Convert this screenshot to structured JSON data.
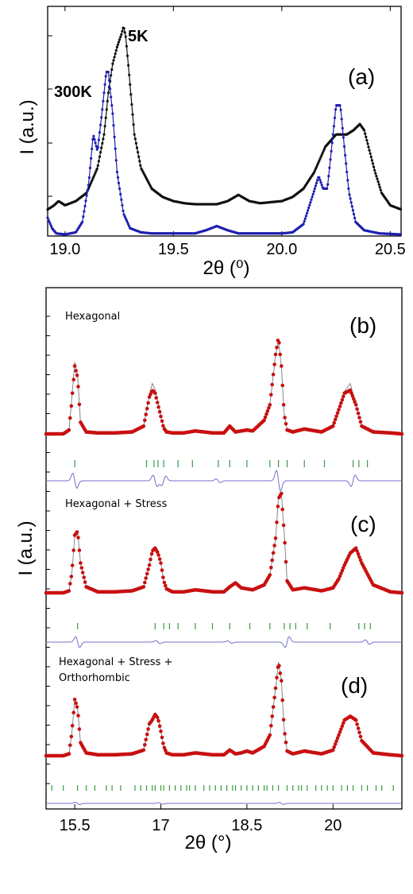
{
  "chart_data": [
    {
      "type": "line",
      "panel_label": "(a)",
      "xlabel": "2θ (⁰)",
      "ylabel": "I (a.u.)",
      "xlim": [
        18.92,
        20.55
      ],
      "ylim": [
        0,
        100
      ],
      "x_ticks": [
        19.0,
        19.5,
        20.0,
        20.5
      ],
      "x_tick_labels": [
        "19.0",
        "19.5",
        "20.0",
        "20.5"
      ],
      "y_tick_labels_shown": false,
      "annotations": [
        "300K",
        "5K"
      ],
      "series_colors": {
        "black": "#111111",
        "blue": "#1f1fb0"
      },
      "series": [
        {
          "color": "black",
          "x": [
            18.92,
            18.95,
            18.97,
            19.0,
            19.05,
            19.1,
            19.15,
            19.18,
            19.2,
            19.22,
            19.24,
            19.26,
            19.27,
            19.28,
            19.3,
            19.32,
            19.35,
            19.4,
            19.45,
            19.5,
            19.55,
            19.6,
            19.7,
            19.75,
            19.8,
            19.85,
            19.9,
            20.0,
            20.05,
            20.1,
            20.15,
            20.2,
            20.25,
            20.3,
            20.33,
            20.36,
            20.38,
            20.4,
            20.43,
            20.46,
            20.5,
            20.55
          ],
          "y": [
            12,
            14,
            16,
            14,
            16,
            20,
            32,
            48,
            68,
            82,
            90,
            96,
            100,
            95,
            72,
            48,
            32,
            22,
            18,
            16,
            15,
            14.5,
            14.5,
            16,
            19,
            16,
            15,
            16,
            18,
            22,
            30,
            42,
            48,
            48,
            50,
            53,
            50,
            42,
            30,
            20,
            14,
            12
          ]
        },
        {
          "color": "blue",
          "x": [
            18.92,
            18.94,
            18.96,
            19.0,
            19.05,
            19.08,
            19.11,
            19.13,
            19.15,
            19.17,
            19.19,
            19.2,
            19.22,
            19.24,
            19.27,
            19.3,
            19.35,
            19.4,
            19.5,
            19.6,
            19.65,
            19.7,
            19.75,
            19.8,
            19.9,
            20.0,
            20.05,
            20.1,
            20.14,
            20.17,
            20.19,
            20.21,
            20.23,
            20.25,
            20.27,
            20.29,
            20.31,
            20.34,
            20.38,
            20.45,
            20.55
          ],
          "y": [
            8,
            3,
            0.5,
            0,
            1,
            6,
            25,
            48,
            40,
            58,
            78,
            78,
            58,
            30,
            10,
            3,
            1,
            0.5,
            0.5,
            0.5,
            2,
            4,
            2,
            0.5,
            0.5,
            0.5,
            1,
            5,
            18,
            28,
            22,
            22,
            42,
            62,
            62,
            40,
            20,
            6,
            2,
            0.5,
            0
          ]
        }
      ]
    },
    {
      "type": "line",
      "panel_labels": [
        "(b)",
        "(c)",
        "(d)"
      ],
      "fit_labels": [
        "Hexagonal",
        "Hexagonal + Stress",
        "Hexagonal + Stress +",
        "Orthorhombic"
      ],
      "xlabel": "2θ (°)",
      "ylabel": "I (a.u.)",
      "xlim": [
        15.0,
        21.2
      ],
      "x_ticks": [
        15.5,
        17,
        18.5,
        20
      ],
      "x_tick_labels": [
        "15.5",
        "17",
        "18.5",
        "20"
      ],
      "y_tick_labels_shown": false,
      "colors": {
        "observed": "#c81010",
        "calculated": "#888888",
        "difference": "#7070cc",
        "reflections": "#3a9a3a"
      },
      "profile_x": [
        15.0,
        15.3,
        15.4,
        15.45,
        15.5,
        15.55,
        15.6,
        15.7,
        15.9,
        16.2,
        16.5,
        16.7,
        16.8,
        16.85,
        16.9,
        16.95,
        17.0,
        17.05,
        17.1,
        17.2,
        17.4,
        17.6,
        17.9,
        18.1,
        18.2,
        18.3,
        18.4,
        18.5,
        18.6,
        18.8,
        18.9,
        19.0,
        19.05,
        19.1,
        19.15,
        19.2,
        19.3,
        19.5,
        19.8,
        20.0,
        20.1,
        20.2,
        20.3,
        20.4,
        20.5,
        20.7,
        21.0,
        21.2
      ],
      "profiles": [
        {
          "panel": "(b)",
          "observed": [
            0,
            0,
            4,
            35,
            70,
            58,
            12,
            2,
            1,
            1,
            2,
            8,
            38,
            45,
            42,
            30,
            18,
            6,
            2,
            1,
            1,
            3,
            1,
            1,
            8,
            2,
            3,
            4,
            3,
            14,
            30,
            82,
            100,
            70,
            20,
            4,
            2,
            5,
            2,
            8,
            25,
            42,
            45,
            30,
            8,
            2,
            1,
            0
          ],
          "calculated": [
            0,
            0,
            4,
            38,
            74,
            60,
            12,
            2,
            1,
            1,
            2,
            8,
            40,
            52,
            46,
            32,
            18,
            6,
            2,
            1,
            1,
            3,
            1,
            1,
            8,
            2,
            3,
            4,
            3,
            14,
            30,
            82,
            96,
            70,
            20,
            4,
            2,
            5,
            2,
            8,
            25,
            44,
            52,
            30,
            8,
            2,
            1,
            0
          ],
          "difference": [
            0,
            0,
            0,
            0,
            0,
            0,
            0,
            0,
            0,
            0,
            0,
            0,
            0,
            0,
            0,
            0,
            0,
            0,
            0,
            0,
            0,
            0,
            0,
            0,
            0,
            0,
            0,
            0,
            0,
            0,
            0,
            0,
            0,
            0,
            0,
            0,
            0,
            0,
            0,
            0,
            0,
            0,
            0,
            0,
            0,
            0,
            0,
            0
          ],
          "difference_features": [
            {
              "x": 15.5,
              "amp": -40
            },
            {
              "x": 16.9,
              "amp": -30
            },
            {
              "x": 17.05,
              "amp": 25
            },
            {
              "x": 18.0,
              "amp": -10
            },
            {
              "x": 19.05,
              "amp": -55
            },
            {
              "x": 20.35,
              "amp": 30
            }
          ],
          "reflections_x": [
            15.5,
            16.75,
            16.88,
            16.95,
            17.05,
            17.3,
            17.55,
            18.0,
            18.2,
            18.5,
            18.9,
            19.05,
            19.2,
            19.5,
            19.85,
            20.35,
            20.45,
            20.6
          ]
        },
        {
          "panel": "(c)",
          "observed": [
            0,
            0,
            2,
            20,
            58,
            62,
            30,
            6,
            1,
            1,
            2,
            6,
            28,
            42,
            45,
            40,
            30,
            12,
            4,
            1,
            1,
            3,
            1,
            1,
            6,
            10,
            5,
            4,
            3,
            8,
            18,
            55,
            95,
            100,
            60,
            12,
            3,
            5,
            2,
            5,
            14,
            28,
            40,
            45,
            30,
            8,
            1,
            0
          ],
          "calculated": [
            0,
            0,
            2,
            20,
            58,
            62,
            30,
            6,
            1,
            1,
            2,
            6,
            28,
            42,
            45,
            40,
            30,
            12,
            4,
            1,
            1,
            3,
            1,
            1,
            6,
            10,
            5,
            4,
            3,
            8,
            18,
            55,
            95,
            100,
            60,
            12,
            3,
            5,
            2,
            5,
            14,
            28,
            40,
            45,
            30,
            8,
            1,
            0
          ],
          "difference": [
            0,
            0,
            0,
            0,
            0,
            0,
            0,
            0,
            0,
            0,
            0,
            0,
            0,
            0,
            0,
            0,
            0,
            0,
            0,
            0,
            0,
            0,
            0,
            0,
            0,
            0,
            0,
            0,
            0,
            0,
            0,
            0,
            0,
            0,
            0,
            0,
            0,
            0,
            0,
            0,
            0,
            0,
            0,
            0,
            0,
            0,
            0,
            0
          ],
          "difference_features": [
            {
              "x": 15.55,
              "amp": -35
            },
            {
              "x": 16.95,
              "amp": -10
            },
            {
              "x": 18.2,
              "amp": -8
            },
            {
              "x": 19.2,
              "amp": 35
            },
            {
              "x": 20.6,
              "amp": -15
            }
          ],
          "reflections_x": [
            15.55,
            16.9,
            17.05,
            17.15,
            17.3,
            17.6,
            17.9,
            18.2,
            18.55,
            18.9,
            19.15,
            19.25,
            19.35,
            19.55,
            19.95,
            20.45,
            20.55,
            20.65
          ]
        },
        {
          "panel": "(d)",
          "observed": [
            0,
            0,
            2,
            25,
            60,
            50,
            14,
            3,
            1,
            1,
            2,
            6,
            34,
            38,
            44,
            40,
            26,
            10,
            3,
            1,
            1,
            3,
            1,
            1,
            6,
            2,
            3,
            5,
            3,
            10,
            22,
            72,
            100,
            80,
            28,
            5,
            2,
            5,
            2,
            6,
            22,
            38,
            42,
            38,
            16,
            3,
            1,
            0
          ],
          "calculated": [
            0,
            0,
            2,
            25,
            60,
            50,
            14,
            3,
            1,
            1,
            2,
            6,
            34,
            38,
            44,
            40,
            26,
            10,
            3,
            1,
            1,
            3,
            1,
            1,
            6,
            2,
            3,
            5,
            3,
            10,
            22,
            72,
            100,
            80,
            28,
            5,
            2,
            5,
            2,
            6,
            22,
            38,
            42,
            38,
            16,
            3,
            1,
            0
          ],
          "difference": [
            0,
            0,
            0,
            0,
            0,
            0,
            0,
            0,
            0,
            0,
            0,
            0,
            0,
            0,
            0,
            0,
            0,
            0,
            0,
            0,
            0,
            0,
            0,
            0,
            0,
            0,
            0,
            0,
            0,
            0,
            0,
            0,
            0,
            0,
            0,
            0,
            0,
            0,
            0,
            0,
            0,
            0,
            0,
            0,
            0,
            0,
            0,
            0
          ],
          "difference_features": [
            {
              "x": 15.55,
              "amp": -10
            },
            {
              "x": 17.0,
              "amp": -6
            },
            {
              "x": 19.1,
              "amp": -8
            }
          ],
          "reflections_x": [
            15.1,
            15.3,
            15.55,
            15.7,
            15.85,
            16.05,
            16.15,
            16.3,
            16.55,
            16.65,
            16.75,
            16.85,
            16.9,
            17.0,
            17.05,
            17.15,
            17.25,
            17.35,
            17.45,
            17.5,
            17.6,
            17.75,
            17.85,
            17.95,
            18.05,
            18.15,
            18.25,
            18.3,
            18.4,
            18.5,
            18.6,
            18.7,
            18.8,
            18.85,
            18.95,
            19.05,
            19.2,
            19.3,
            19.4,
            19.45,
            19.55,
            19.7,
            19.8,
            19.9,
            20.0,
            20.15,
            20.25,
            20.35,
            20.5,
            20.6,
            20.75,
            20.85,
            21.05
          ]
        }
      ]
    }
  ]
}
